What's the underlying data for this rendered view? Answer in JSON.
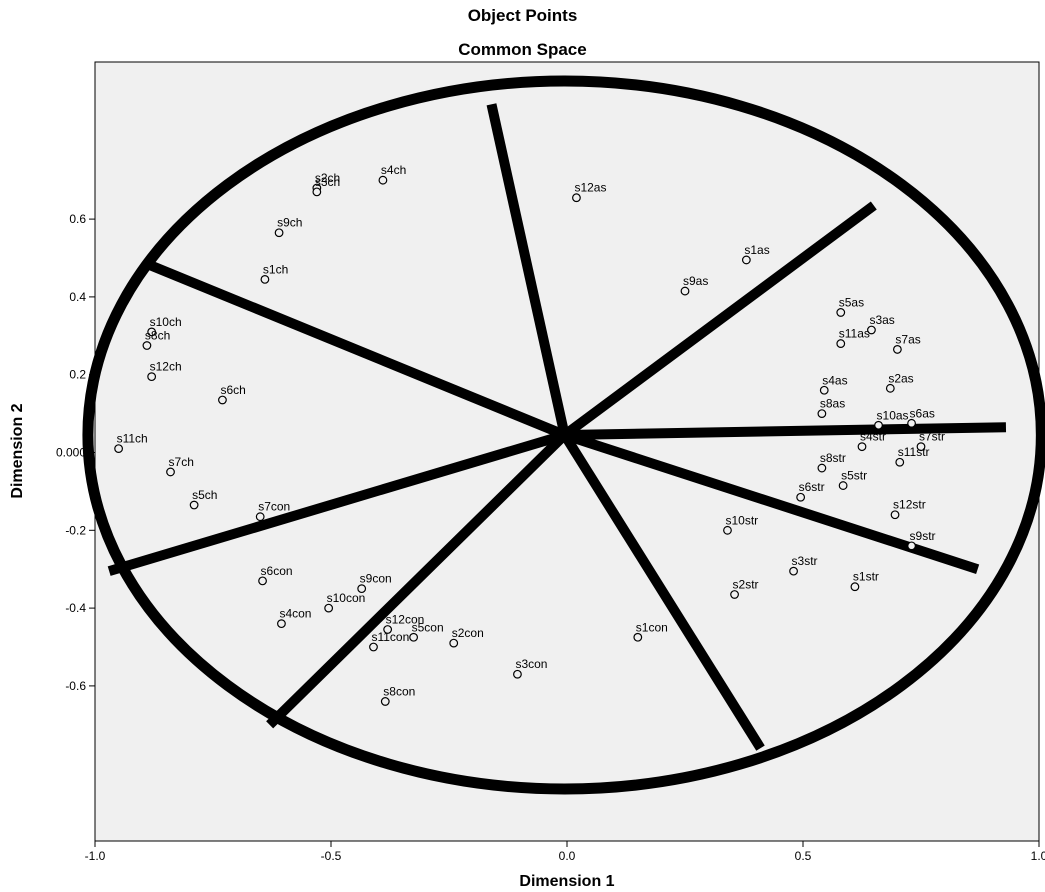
{
  "chart_data": {
    "type": "scatter",
    "title": "Object Points",
    "subtitle": "Common Space",
    "xlabel": "Dimension 1",
    "ylabel": "Dimension 2",
    "xlim": [
      -1.0,
      1.0
    ],
    "ylim": [
      -1.0,
      1.0
    ],
    "x_ticks": [
      -1.0,
      -0.5,
      0.0,
      0.5,
      1.0
    ],
    "x_tick_labels": [
      "-1.0",
      "-0.5",
      "0.0",
      "0.5",
      "1.0"
    ],
    "y_ticks": [
      0.6,
      0.4,
      0.2,
      0.0,
      -0.2,
      -0.4,
      -0.6
    ],
    "y_tick_labels": [
      "0.6",
      "0.4",
      "0.2",
      "0.000",
      "-0.2",
      "-0.4",
      "-0.6"
    ],
    "grid": false,
    "background": "#f0f0f0",
    "annotation": {
      "ellipse": {
        "cx": -0.005,
        "cy": 0.045,
        "rx": 1.01,
        "ry": 0.91
      },
      "center": [
        -0.005,
        0.045
      ],
      "dividers": [
        [
          -0.16,
          0.895
        ],
        [
          0.65,
          0.635
        ],
        [
          0.93,
          0.065
        ],
        [
          0.87,
          -0.3
        ],
        [
          0.41,
          -0.76
        ],
        [
          -0.63,
          -0.7
        ],
        [
          -0.97,
          -0.305
        ],
        [
          -0.89,
          0.485
        ]
      ],
      "stroke_color": "#000000"
    },
    "points": [
      {
        "label": "s4ch",
        "x": -0.39,
        "y": 0.7
      },
      {
        "label": "s2ch",
        "x": -0.53,
        "y": 0.68
      },
      {
        "label": "s3ch",
        "x": -0.53,
        "y": 0.67
      },
      {
        "label": "s9ch",
        "x": -0.61,
        "y": 0.565
      },
      {
        "label": "s1ch",
        "x": -0.64,
        "y": 0.445
      },
      {
        "label": "s10ch",
        "x": -0.88,
        "y": 0.31
      },
      {
        "label": "s8ch",
        "x": -0.89,
        "y": 0.275
      },
      {
        "label": "s12ch",
        "x": -0.88,
        "y": 0.195
      },
      {
        "label": "s6ch",
        "x": -0.73,
        "y": 0.135
      },
      {
        "label": "s11ch",
        "x": -0.95,
        "y": 0.01
      },
      {
        "label": "s7ch",
        "x": -0.84,
        "y": -0.05
      },
      {
        "label": "s5ch",
        "x": -0.79,
        "y": -0.135
      },
      {
        "label": "s12as",
        "x": 0.02,
        "y": 0.655
      },
      {
        "label": "s1as",
        "x": 0.38,
        "y": 0.495
      },
      {
        "label": "s9as",
        "x": 0.25,
        "y": 0.415
      },
      {
        "label": "s5as",
        "x": 0.58,
        "y": 0.36
      },
      {
        "label": "s3as",
        "x": 0.645,
        "y": 0.315
      },
      {
        "label": "s7as",
        "x": 0.7,
        "y": 0.265
      },
      {
        "label": "s11as",
        "x": 0.58,
        "y": 0.28
      },
      {
        "label": "s4as",
        "x": 0.545,
        "y": 0.16
      },
      {
        "label": "s2as",
        "x": 0.685,
        "y": 0.165
      },
      {
        "label": "s8as",
        "x": 0.54,
        "y": 0.1
      },
      {
        "label": "s10as",
        "x": 0.66,
        "y": 0.07
      },
      {
        "label": "s6as",
        "x": 0.73,
        "y": 0.075
      },
      {
        "label": "s4str",
        "x": 0.625,
        "y": 0.015
      },
      {
        "label": "s7str",
        "x": 0.75,
        "y": 0.015
      },
      {
        "label": "s8str",
        "x": 0.54,
        "y": -0.04
      },
      {
        "label": "s11str",
        "x": 0.705,
        "y": -0.025
      },
      {
        "label": "s5str",
        "x": 0.585,
        "y": -0.085
      },
      {
        "label": "s6str",
        "x": 0.495,
        "y": -0.115
      },
      {
        "label": "s12str",
        "x": 0.695,
        "y": -0.16
      },
      {
        "label": "s10str",
        "x": 0.34,
        "y": -0.2
      },
      {
        "label": "s9str",
        "x": 0.73,
        "y": -0.24
      },
      {
        "label": "s3str",
        "x": 0.48,
        "y": -0.305
      },
      {
        "label": "s1str",
        "x": 0.61,
        "y": -0.345
      },
      {
        "label": "s2str",
        "x": 0.355,
        "y": -0.365
      },
      {
        "label": "s7con",
        "x": -0.65,
        "y": -0.165
      },
      {
        "label": "s6con",
        "x": -0.645,
        "y": -0.33
      },
      {
        "label": "s9con",
        "x": -0.435,
        "y": -0.35
      },
      {
        "label": "s4con",
        "x": -0.605,
        "y": -0.44
      },
      {
        "label": "s10con",
        "x": -0.505,
        "y": -0.4
      },
      {
        "label": "s12con",
        "x": -0.38,
        "y": -0.455
      },
      {
        "label": "s11con",
        "x": -0.41,
        "y": -0.5
      },
      {
        "label": "s5con",
        "x": -0.325,
        "y": -0.475
      },
      {
        "label": "s2con",
        "x": -0.24,
        "y": -0.49
      },
      {
        "label": "s1con",
        "x": 0.15,
        "y": -0.475
      },
      {
        "label": "s3con",
        "x": -0.105,
        "y": -0.57
      },
      {
        "label": "s8con",
        "x": -0.385,
        "y": -0.64
      }
    ]
  }
}
